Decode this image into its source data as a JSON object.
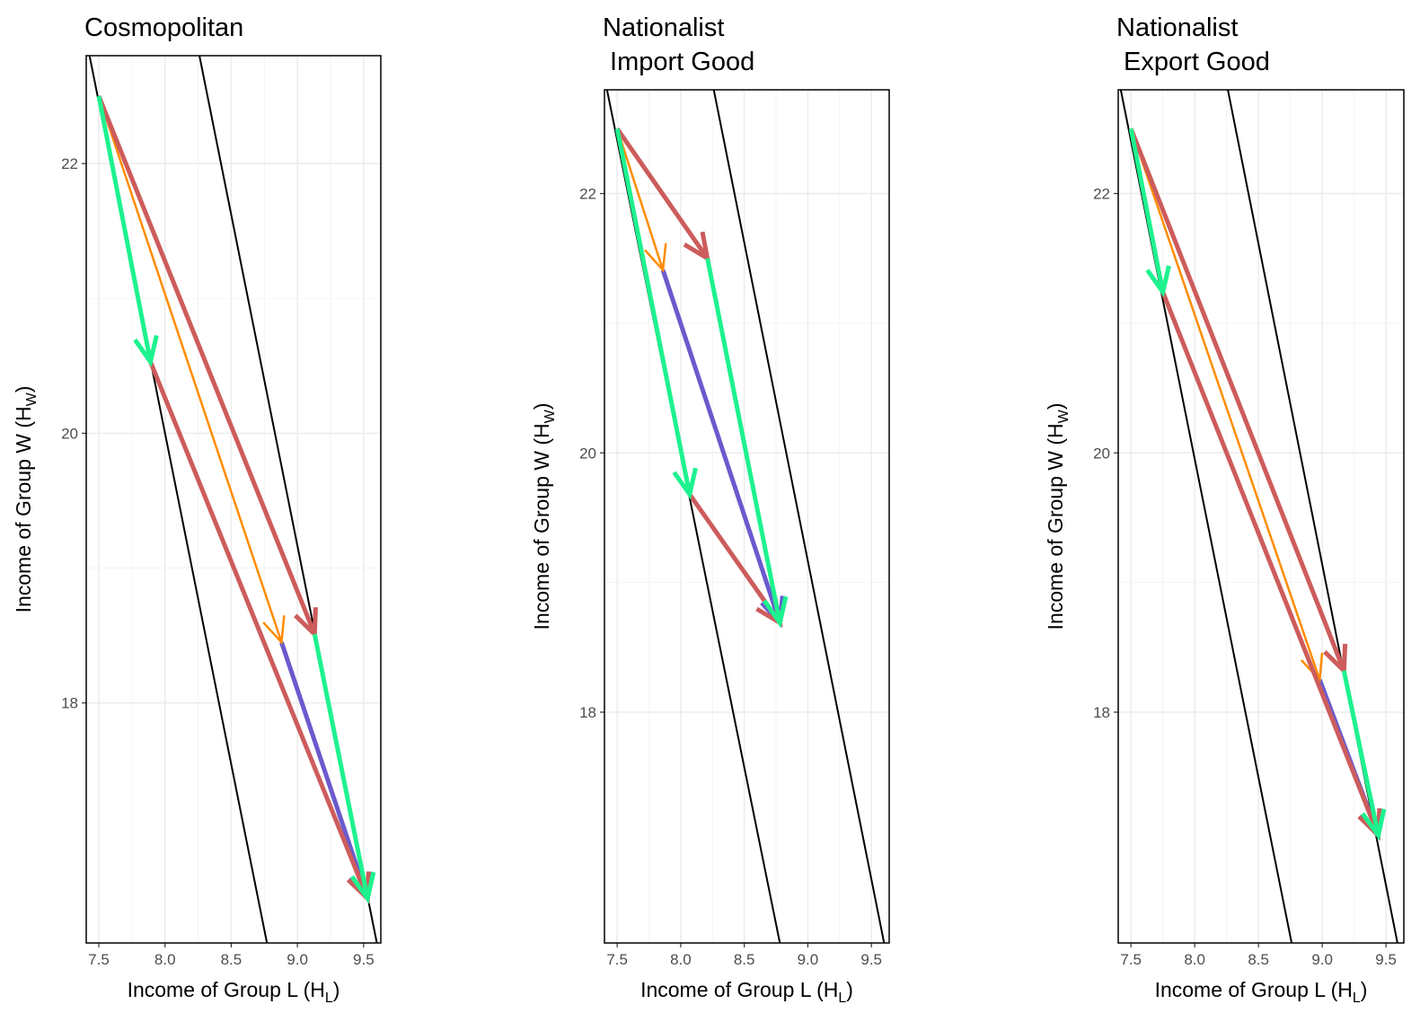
{
  "chart_data": [
    {
      "type": "arrows",
      "title": [
        "Cosmopolitan"
      ],
      "xlabel": [
        "Income of Group L (H",
        "L",
        ")"
      ],
      "ylabel": [
        "Income of Group W (H",
        "W",
        ")"
      ],
      "xlim": [
        7.405,
        9.63
      ],
      "ylim": [
        16.22,
        22.8
      ],
      "xticks": [
        {
          "value": 7.5,
          "label": "7.5"
        },
        {
          "value": 8,
          "label": "8.0"
        },
        {
          "value": 8.5,
          "label": "8.5"
        },
        {
          "value": 9,
          "label": "9.0"
        },
        {
          "value": 9.5,
          "label": "9.5"
        }
      ],
      "yticks": [
        18,
        20,
        22
      ],
      "grid": true,
      "lines": [
        {
          "x": [
            7.43,
            8.77
          ],
          "y": [
            22.8,
            16.22
          ]
        },
        {
          "x": [
            8.26,
            9.6
          ],
          "y": [
            22.8,
            16.22
          ]
        }
      ],
      "segments": [
        {
          "x": [
            8.88,
            9.53
          ],
          "y": [
            18.45,
            16.55
          ],
          "color": "#6a5acd"
        },
        {
          "x": [
            7.5,
            8.88
          ],
          "y": [
            22.5,
            18.45
          ],
          "color": "#ff8c00"
        },
        {
          "x": [
            7.89,
            9.53
          ],
          "y": [
            20.53,
            16.55
          ],
          "color": "#cd5c5c"
        },
        {
          "x": [
            7.5,
            9.13
          ],
          "y": [
            22.5,
            18.51
          ],
          "color": "#cd5c5c"
        },
        {
          "x": [
            7.5,
            7.89
          ],
          "y": [
            22.5,
            20.53
          ],
          "color": "#1ef28f"
        },
        {
          "x": [
            9.13,
            9.53
          ],
          "y": [
            18.51,
            16.55
          ],
          "color": "#1ef28f"
        }
      ]
    },
    {
      "type": "arrows",
      "title": [
        "Nationalist",
        " Import Good"
      ],
      "xlabel": [
        "Income of Group L (H",
        "L",
        ")"
      ],
      "ylabel": [
        "Income of Group W (H",
        "W",
        ")"
      ],
      "xlim": [
        7.4,
        9.64
      ],
      "ylim": [
        16.22,
        22.8
      ],
      "xticks": [
        {
          "value": 7.5,
          "label": "7.5"
        },
        {
          "value": 8,
          "label": "8.0"
        },
        {
          "value": 8.5,
          "label": "8.5"
        },
        {
          "value": 9,
          "label": "9.0"
        },
        {
          "value": 9.5,
          "label": "9.5"
        }
      ],
      "yticks": [
        18,
        20,
        22
      ],
      "grid": true,
      "lines": [
        {
          "x": [
            7.42,
            8.78
          ],
          "y": [
            22.8,
            16.22
          ]
        },
        {
          "x": [
            8.26,
            9.6
          ],
          "y": [
            22.8,
            16.22
          ]
        }
      ],
      "segments": [
        {
          "x": [
            7.86,
            8.78
          ],
          "y": [
            21.41,
            18.69
          ],
          "color": "#6a5acd"
        },
        {
          "x": [
            7.5,
            7.86
          ],
          "y": [
            22.5,
            21.41
          ],
          "color": "#ff8c00"
        },
        {
          "x": [
            7.5,
            8.21
          ],
          "y": [
            22.5,
            21.5
          ],
          "color": "#cd5c5c"
        },
        {
          "x": [
            8.07,
            8.78
          ],
          "y": [
            19.68,
            18.69
          ],
          "color": "#cd5c5c"
        },
        {
          "x": [
            7.5,
            8.07
          ],
          "y": [
            22.5,
            19.68
          ],
          "color": "#1ef28f"
        },
        {
          "x": [
            8.21,
            8.78
          ],
          "y": [
            21.5,
            18.69
          ],
          "color": "#1ef28f"
        }
      ]
    },
    {
      "type": "arrows",
      "title": [
        "Nationalist",
        " Export Good"
      ],
      "xlabel": [
        "Income of Group L (H",
        "L",
        ")"
      ],
      "ylabel": [
        "Income of Group W (H",
        "W",
        ")"
      ],
      "xlim": [
        7.4,
        9.64
      ],
      "ylim": [
        16.22,
        22.8
      ],
      "xticks": [
        {
          "value": 7.5,
          "label": "7.5"
        },
        {
          "value": 8,
          "label": "8.0"
        },
        {
          "value": 8.5,
          "label": "8.5"
        },
        {
          "value": 9,
          "label": "9.0"
        },
        {
          "value": 9.5,
          "label": "9.5"
        }
      ],
      "yticks": [
        18,
        20,
        22
      ],
      "grid": true,
      "lines": [
        {
          "x": [
            7.42,
            8.76
          ],
          "y": [
            22.8,
            16.22
          ]
        },
        {
          "x": [
            8.26,
            9.59
          ],
          "y": [
            22.8,
            16.22
          ]
        }
      ],
      "segments": [
        {
          "x": [
            8.98,
            9.44
          ],
          "y": [
            18.25,
            17.05
          ],
          "color": "#6a5acd"
        },
        {
          "x": [
            7.5,
            8.98
          ],
          "y": [
            22.5,
            18.25
          ],
          "color": "#ff8c00"
        },
        {
          "x": [
            7.75,
            9.44
          ],
          "y": [
            21.24,
            17.05
          ],
          "color": "#cd5c5c"
        },
        {
          "x": [
            7.5,
            9.17
          ],
          "y": [
            22.5,
            18.32
          ],
          "color": "#cd5c5c"
        },
        {
          "x": [
            7.5,
            7.75
          ],
          "y": [
            22.5,
            21.24
          ],
          "color": "#1ef28f"
        },
        {
          "x": [
            9.17,
            9.44
          ],
          "y": [
            18.32,
            17.05
          ],
          "color": "#1ef28f"
        }
      ]
    }
  ]
}
